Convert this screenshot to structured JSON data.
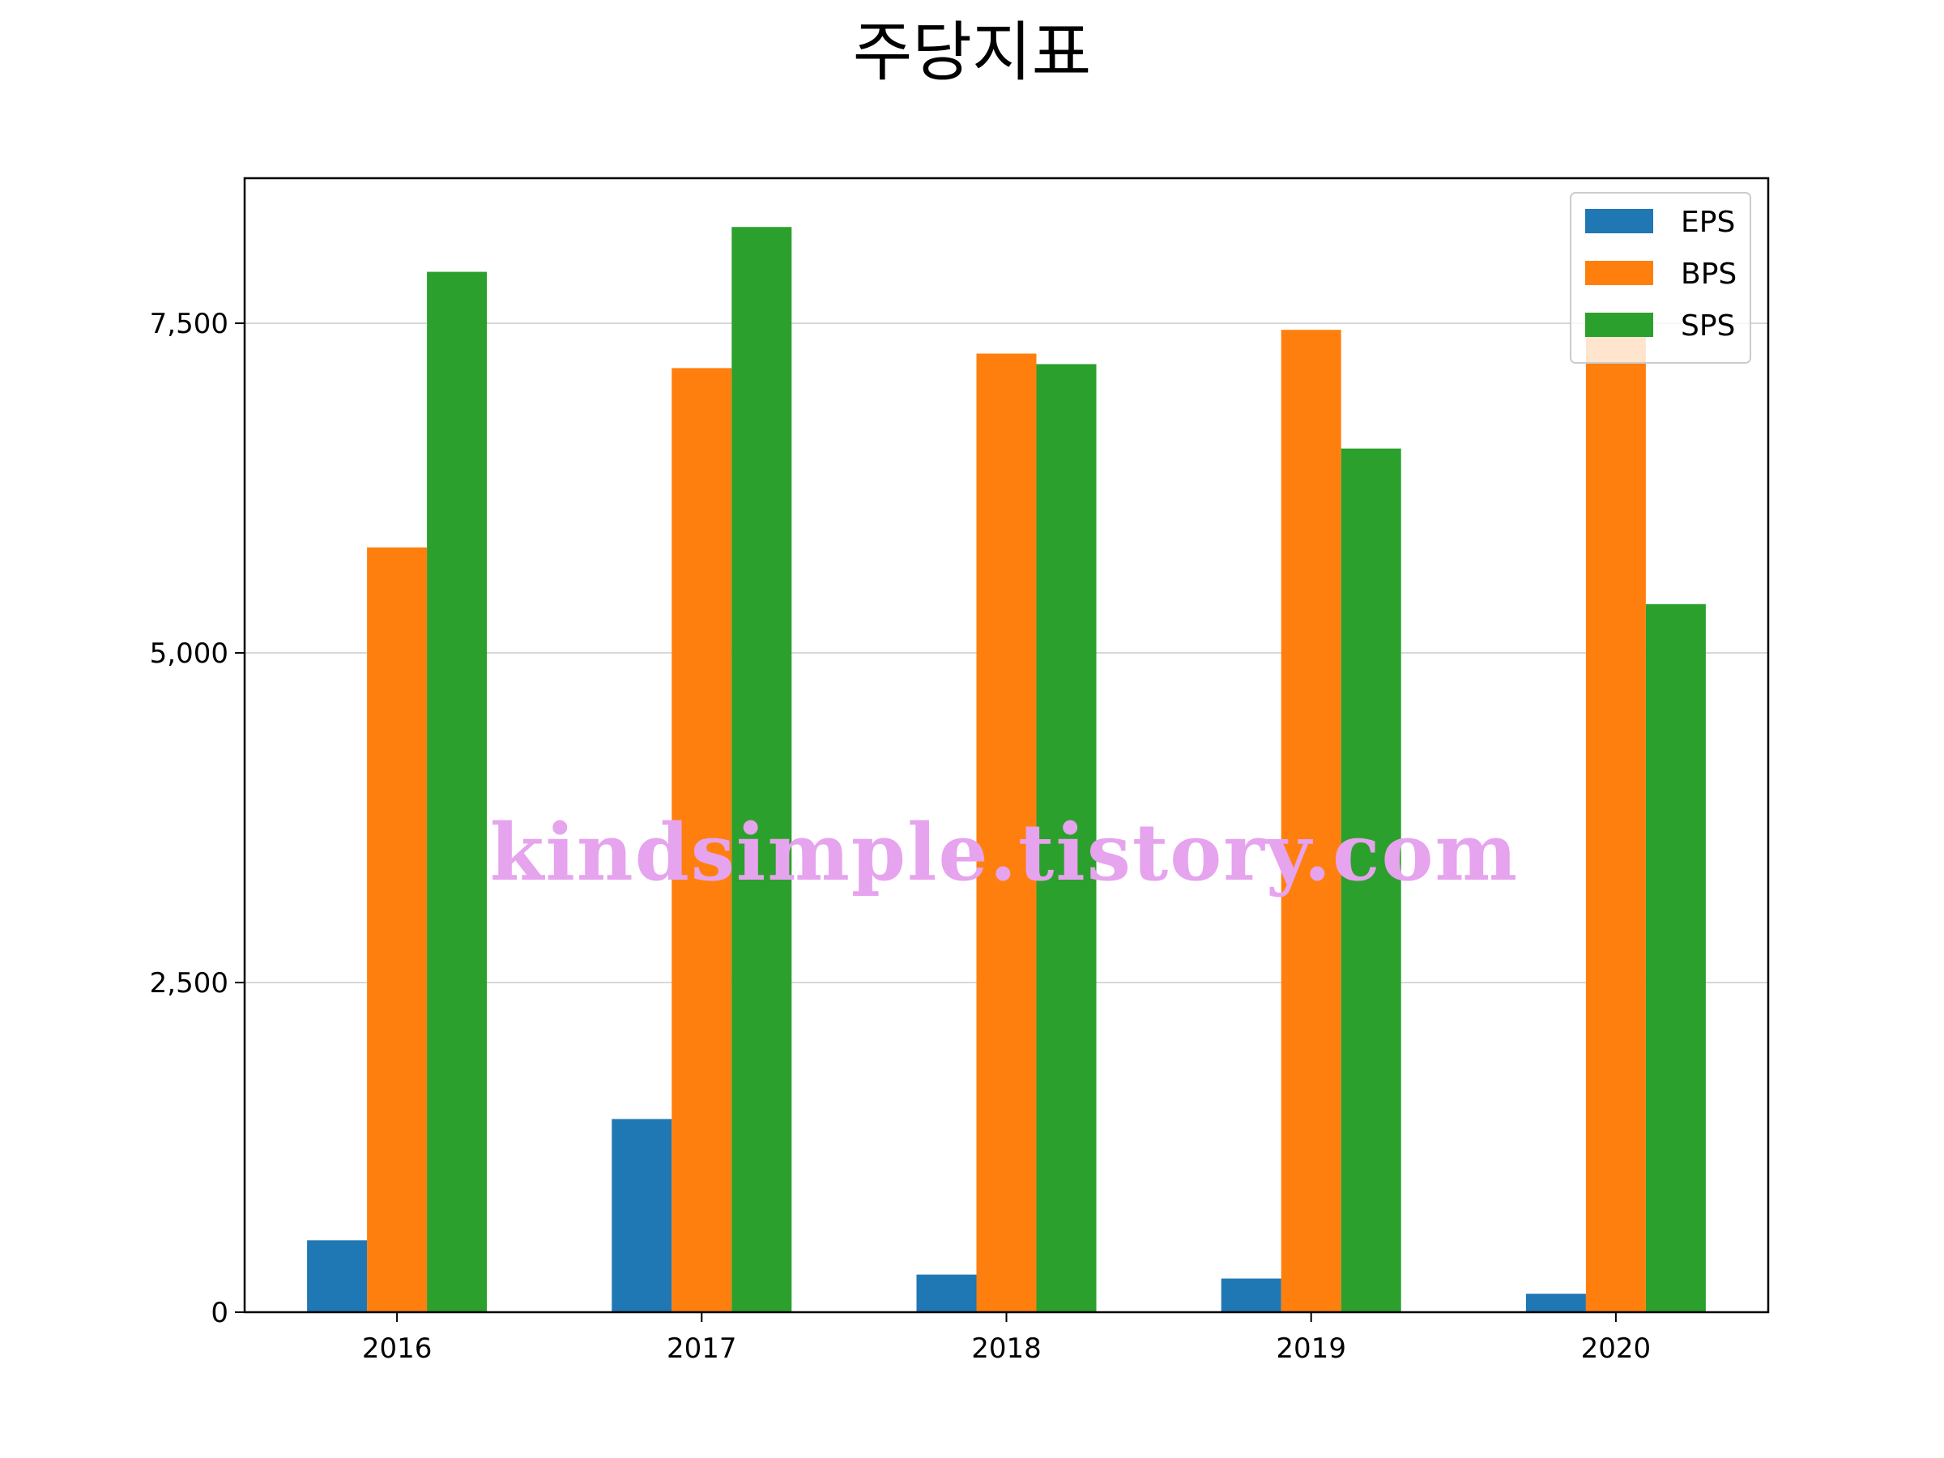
{
  "chart_data": {
    "type": "bar",
    "title": "주당지표",
    "xlabel": "",
    "ylabel": "",
    "categories": [
      "2016",
      "2017",
      "2018",
      "2019",
      "2020"
    ],
    "series": [
      {
        "name": "EPS",
        "color": "#1f77b4",
        "values": [
          545,
          1465,
          285,
          255,
          140
        ]
      },
      {
        "name": "BPS",
        "color": "#ff7f0e",
        "values": [
          5800,
          7160,
          7270,
          7450,
          7520
        ]
      },
      {
        "name": "SPS",
        "color": "#2ca02c",
        "values": [
          7890,
          8230,
          7190,
          6550,
          5370
        ]
      }
    ],
    "ylim": [
      0,
      8600
    ],
    "yticks": [
      0,
      2500,
      5000,
      7500
    ],
    "ytick_labels": [
      "0",
      "2,500",
      "5,000",
      "7,500"
    ],
    "grid": "horizontal",
    "legend_position": "top-right"
  },
  "watermark": "kindsimple.tistory.com"
}
